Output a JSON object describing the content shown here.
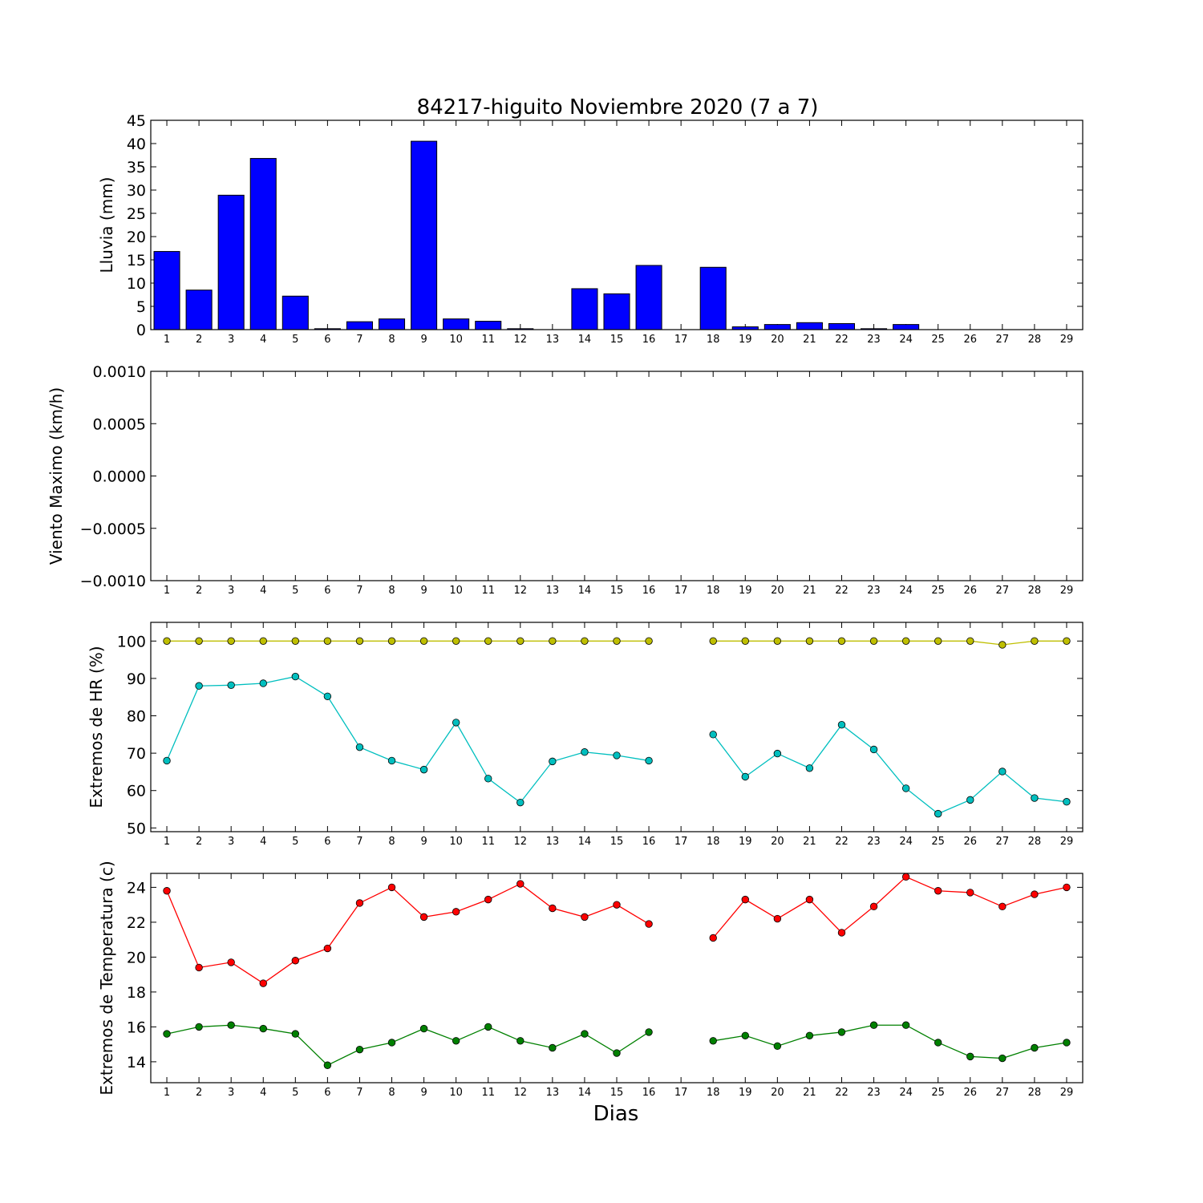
{
  "figure": {
    "title": "84217-higuito Noviembre 2020  (7 a 7)",
    "xlabel": "Dias"
  },
  "chart_data": [
    {
      "type": "bar",
      "ylabel": "Lluvia (mm)",
      "ylim": [
        0,
        45
      ],
      "yticks": [
        0,
        5,
        10,
        15,
        20,
        25,
        30,
        35,
        40,
        45
      ],
      "ytick_labels": [
        "0",
        "5",
        "10",
        "15",
        "20",
        "25",
        "30",
        "35",
        "40",
        "45"
      ],
      "categories": [
        "1",
        "2",
        "3",
        "4",
        "5",
        "6",
        "7",
        "8",
        "9",
        "10",
        "11",
        "12",
        "13",
        "14",
        "15",
        "16",
        "17",
        "18",
        "19",
        "20",
        "21",
        "22",
        "23",
        "24",
        "25",
        "26",
        "27",
        "28",
        "29"
      ],
      "series": [
        {
          "color": "#0000ff",
          "values": [
            16.8,
            8.5,
            28.9,
            36.8,
            7.2,
            0.2,
            1.7,
            2.3,
            40.5,
            2.3,
            1.8,
            0.2,
            0.0,
            8.8,
            7.7,
            13.8,
            null,
            13.4,
            0.6,
            1.1,
            1.5,
            1.3,
            0.2,
            1.1,
            0.0,
            0.0,
            0.0,
            0.0,
            0.0
          ]
        }
      ]
    },
    {
      "type": "line",
      "ylabel": "Viento Maximo (km/h)",
      "ylim": [
        -0.001,
        0.001
      ],
      "yticks": [
        -0.001,
        -0.0005,
        0.0,
        0.0005,
        0.001
      ],
      "ytick_labels": [
        "−0.0010",
        "−0.0005",
        "0.0000",
        "0.0005",
        "0.0010"
      ],
      "categories": [
        "1",
        "2",
        "3",
        "4",
        "5",
        "6",
        "7",
        "8",
        "9",
        "10",
        "11",
        "12",
        "13",
        "14",
        "15",
        "16",
        "17",
        "18",
        "19",
        "20",
        "21",
        "22",
        "23",
        "24",
        "25",
        "26",
        "27",
        "28",
        "29"
      ],
      "series": []
    },
    {
      "type": "line",
      "ylabel": "Extremos de HR (%)",
      "ylim": [
        49,
        105
      ],
      "yticks": [
        50,
        60,
        70,
        80,
        90,
        100
      ],
      "ytick_labels": [
        "50",
        "60",
        "70",
        "80",
        "90",
        "100"
      ],
      "categories": [
        "1",
        "2",
        "3",
        "4",
        "5",
        "6",
        "7",
        "8",
        "9",
        "10",
        "11",
        "12",
        "13",
        "14",
        "15",
        "16",
        "17",
        "18",
        "19",
        "20",
        "21",
        "22",
        "23",
        "24",
        "25",
        "26",
        "27",
        "28",
        "29"
      ],
      "series": [
        {
          "color": "#bfbf00",
          "values": [
            100,
            100,
            100,
            100,
            100,
            100,
            100,
            100,
            100,
            100,
            100,
            100,
            100,
            100,
            100,
            100,
            null,
            100,
            100,
            100,
            100,
            100,
            100,
            100,
            100,
            100,
            99,
            100,
            100
          ]
        },
        {
          "color": "#00bfbf",
          "values": [
            68,
            88,
            88.2,
            88.7,
            90.5,
            85.2,
            71.6,
            68,
            65.6,
            78.2,
            63.2,
            56.8,
            67.8,
            70.3,
            69.4,
            68,
            null,
            75,
            63.7,
            69.9,
            66,
            77.6,
            71,
            60.6,
            53.8,
            57.5,
            65.1,
            58,
            57
          ]
        }
      ]
    },
    {
      "type": "line",
      "ylabel": "Extremos de Temperatura (c)",
      "ylim": [
        12.8,
        24.8
      ],
      "yticks": [
        14,
        16,
        18,
        20,
        22,
        24
      ],
      "ytick_labels": [
        "14",
        "16",
        "18",
        "20",
        "22",
        "24"
      ],
      "categories": [
        "1",
        "2",
        "3",
        "4",
        "5",
        "6",
        "7",
        "8",
        "9",
        "10",
        "11",
        "12",
        "13",
        "14",
        "15",
        "16",
        "17",
        "18",
        "19",
        "20",
        "21",
        "22",
        "23",
        "24",
        "25",
        "26",
        "27",
        "28",
        "29"
      ],
      "series": [
        {
          "color": "#ff0000",
          "values": [
            23.8,
            19.4,
            19.7,
            18.5,
            19.8,
            20.5,
            23.1,
            24.0,
            22.3,
            22.6,
            23.3,
            24.2,
            22.8,
            22.3,
            23.0,
            21.9,
            null,
            21.1,
            23.3,
            22.2,
            23.3,
            21.4,
            22.9,
            24.6,
            23.8,
            23.7,
            22.9,
            23.6,
            24.0
          ]
        },
        {
          "color": "#008000",
          "values": [
            15.6,
            16.0,
            16.1,
            15.9,
            15.6,
            13.8,
            14.7,
            15.1,
            15.9,
            15.2,
            16.0,
            15.2,
            14.8,
            15.6,
            14.5,
            15.7,
            null,
            15.2,
            15.5,
            14.9,
            15.5,
            15.7,
            16.1,
            16.1,
            15.1,
            14.3,
            14.2,
            14.8,
            15.1
          ]
        }
      ]
    }
  ]
}
